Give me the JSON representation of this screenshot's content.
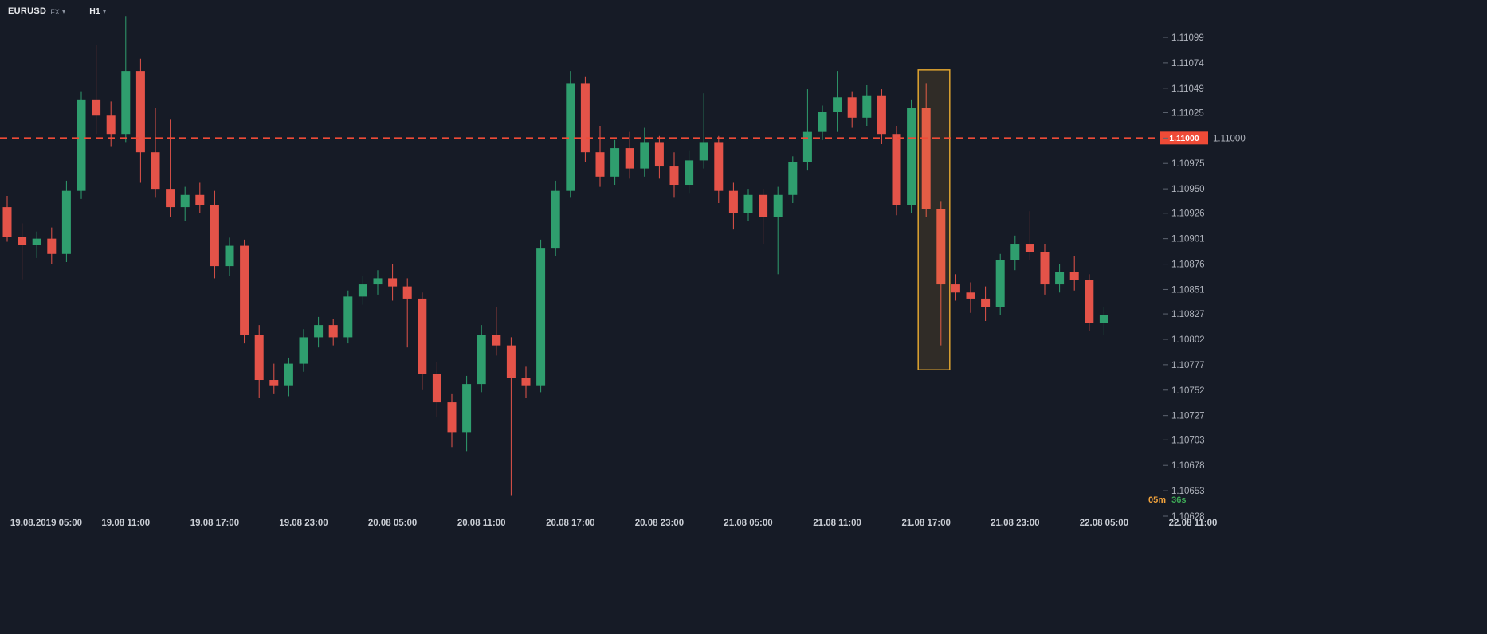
{
  "app": {
    "symbol": "EURUSD",
    "market": "FX",
    "timeframe": "H1",
    "countdown": {
      "minutes": "05m",
      "seconds": "36s"
    }
  },
  "icons": {
    "chevron_down": "▾"
  },
  "colors": {
    "background": "#161b26",
    "up": "#2f9e6e",
    "down": "#e45349",
    "price_line": "#ef4b37",
    "price_tag_text": "#ffffff",
    "axis_text": "#b0b4bd",
    "time_text": "#c9cdd4",
    "tick": "#5f6672",
    "highlight_stroke": "#dfa430",
    "highlight_fill": "rgba(223,164,48,0.13)",
    "countdown_minutes": "#f2a33c",
    "countdown_seconds": "#3eac57"
  },
  "chart_data": {
    "type": "candlestick",
    "symbol": "EURUSD",
    "timeframe": "H1",
    "price_line": {
      "value": 1.11,
      "label": "1.11000"
    },
    "y_axis": {
      "min": 1.10628,
      "max": 1.11099,
      "labels": [
        "1.11099",
        "1.11074",
        "1.11049",
        "1.11025",
        "1.11000",
        "1.10975",
        "1.10950",
        "1.10926",
        "1.10901",
        "1.10876",
        "1.10851",
        "1.10827",
        "1.10802",
        "1.10777",
        "1.10752",
        "1.10727",
        "1.10703",
        "1.10678",
        "1.10653",
        "1.10628"
      ]
    },
    "x_axis": {
      "labels": [
        {
          "text": "19.08.2019 05:00",
          "index": 2
        },
        {
          "text": "19.08 11:00",
          "index": 8
        },
        {
          "text": "19.08 17:00",
          "index": 14
        },
        {
          "text": "19.08 23:00",
          "index": 20
        },
        {
          "text": "20.08 05:00",
          "index": 26
        },
        {
          "text": "20.08 11:00",
          "index": 32
        },
        {
          "text": "20.08 17:00",
          "index": 38
        },
        {
          "text": "20.08 23:00",
          "index": 44
        },
        {
          "text": "21.08 05:00",
          "index": 50
        },
        {
          "text": "21.08 11:00",
          "index": 56
        },
        {
          "text": "21.08 17:00",
          "index": 62
        },
        {
          "text": "21.08 23:00",
          "index": 68
        },
        {
          "text": "22.08 05:00",
          "index": 74
        },
        {
          "text": "22.08 11:00",
          "index": 80
        }
      ]
    },
    "highlight": {
      "from_index": 62,
      "to_index": 63,
      "price_top": 1.11067,
      "price_bottom": 1.10772
    },
    "candles": [
      {
        "t": "19.08 03:00",
        "o": 1.10932,
        "h": 1.10943,
        "l": 1.10898,
        "c": 1.10903
      },
      {
        "t": "19.08 04:00",
        "o": 1.10903,
        "h": 1.10916,
        "l": 1.10861,
        "c": 1.10895
      },
      {
        "t": "19.08 05:00",
        "o": 1.10895,
        "h": 1.10908,
        "l": 1.10882,
        "c": 1.10901
      },
      {
        "t": "19.08 06:00",
        "o": 1.10901,
        "h": 1.10912,
        "l": 1.10876,
        "c": 1.10886
      },
      {
        "t": "19.08 07:00",
        "o": 1.10886,
        "h": 1.10958,
        "l": 1.10878,
        "c": 1.10948
      },
      {
        "t": "19.08 08:00",
        "o": 1.10948,
        "h": 1.11046,
        "l": 1.1094,
        "c": 1.11038
      },
      {
        "t": "19.08 09:00",
        "o": 1.11038,
        "h": 1.11092,
        "l": 1.11004,
        "c": 1.11022
      },
      {
        "t": "19.08 10:00",
        "o": 1.11022,
        "h": 1.11036,
        "l": 1.10992,
        "c": 1.11004
      },
      {
        "t": "19.08 11:00",
        "o": 1.11004,
        "h": 1.1112,
        "l": 1.10996,
        "c": 1.11066
      },
      {
        "t": "19.08 12:00",
        "o": 1.11066,
        "h": 1.11078,
        "l": 1.10956,
        "c": 1.10986
      },
      {
        "t": "19.08 13:00",
        "o": 1.10986,
        "h": 1.1103,
        "l": 1.10942,
        "c": 1.1095
      },
      {
        "t": "19.08 14:00",
        "o": 1.1095,
        "h": 1.11018,
        "l": 1.10922,
        "c": 1.10932
      },
      {
        "t": "19.08 15:00",
        "o": 1.10932,
        "h": 1.10952,
        "l": 1.10918,
        "c": 1.10944
      },
      {
        "t": "19.08 16:00",
        "o": 1.10944,
        "h": 1.10956,
        "l": 1.10926,
        "c": 1.10934
      },
      {
        "t": "19.08 17:00",
        "o": 1.10934,
        "h": 1.10948,
        "l": 1.10862,
        "c": 1.10874
      },
      {
        "t": "19.08 18:00",
        "o": 1.10874,
        "h": 1.10902,
        "l": 1.10864,
        "c": 1.10894
      },
      {
        "t": "19.08 19:00",
        "o": 1.10894,
        "h": 1.109,
        "l": 1.10798,
        "c": 1.10806
      },
      {
        "t": "19.08 20:00",
        "o": 1.10806,
        "h": 1.10816,
        "l": 1.10744,
        "c": 1.10762
      },
      {
        "t": "19.08 21:00",
        "o": 1.10762,
        "h": 1.10778,
        "l": 1.10748,
        "c": 1.10756
      },
      {
        "t": "19.08 22:00",
        "o": 1.10756,
        "h": 1.10784,
        "l": 1.10746,
        "c": 1.10778
      },
      {
        "t": "19.08 23:00",
        "o": 1.10778,
        "h": 1.10812,
        "l": 1.1077,
        "c": 1.10804
      },
      {
        "t": "20.08 00:00",
        "o": 1.10804,
        "h": 1.10824,
        "l": 1.10794,
        "c": 1.10816
      },
      {
        "t": "20.08 01:00",
        "o": 1.10816,
        "h": 1.10822,
        "l": 1.10796,
        "c": 1.10804
      },
      {
        "t": "20.08 02:00",
        "o": 1.10804,
        "h": 1.1085,
        "l": 1.10798,
        "c": 1.10844
      },
      {
        "t": "20.08 03:00",
        "o": 1.10844,
        "h": 1.10864,
        "l": 1.10836,
        "c": 1.10856
      },
      {
        "t": "20.08 04:00",
        "o": 1.10856,
        "h": 1.1087,
        "l": 1.10846,
        "c": 1.10862
      },
      {
        "t": "20.08 05:00",
        "o": 1.10862,
        "h": 1.10876,
        "l": 1.1084,
        "c": 1.10854
      },
      {
        "t": "20.08 06:00",
        "o": 1.10854,
        "h": 1.10862,
        "l": 1.10794,
        "c": 1.10842
      },
      {
        "t": "20.08 07:00",
        "o": 1.10842,
        "h": 1.10848,
        "l": 1.10752,
        "c": 1.10768
      },
      {
        "t": "20.08 08:00",
        "o": 1.10768,
        "h": 1.1078,
        "l": 1.10726,
        "c": 1.1074
      },
      {
        "t": "20.08 09:00",
        "o": 1.1074,
        "h": 1.10748,
        "l": 1.10696,
        "c": 1.1071
      },
      {
        "t": "20.08 10:00",
        "o": 1.1071,
        "h": 1.10766,
        "l": 1.10692,
        "c": 1.10758
      },
      {
        "t": "20.08 11:00",
        "o": 1.10758,
        "h": 1.10816,
        "l": 1.1075,
        "c": 1.10806
      },
      {
        "t": "20.08 12:00",
        "o": 1.10806,
        "h": 1.10834,
        "l": 1.10786,
        "c": 1.10796
      },
      {
        "t": "20.08 13:00",
        "o": 1.10796,
        "h": 1.10804,
        "l": 1.10648,
        "c": 1.10764
      },
      {
        "t": "20.08 14:00",
        "o": 1.10764,
        "h": 1.10775,
        "l": 1.10744,
        "c": 1.10756
      },
      {
        "t": "20.08 15:00",
        "o": 1.10756,
        "h": 1.109,
        "l": 1.1075,
        "c": 1.10892
      },
      {
        "t": "20.08 16:00",
        "o": 1.10892,
        "h": 1.10958,
        "l": 1.10884,
        "c": 1.10948
      },
      {
        "t": "20.08 17:00",
        "o": 1.10948,
        "h": 1.11066,
        "l": 1.10942,
        "c": 1.11054
      },
      {
        "t": "20.08 18:00",
        "o": 1.11054,
        "h": 1.1106,
        "l": 1.10976,
        "c": 1.10986
      },
      {
        "t": "20.08 19:00",
        "o": 1.10986,
        "h": 1.11012,
        "l": 1.10952,
        "c": 1.10962
      },
      {
        "t": "20.08 20:00",
        "o": 1.10962,
        "h": 1.10998,
        "l": 1.10954,
        "c": 1.1099
      },
      {
        "t": "20.08 21:00",
        "o": 1.1099,
        "h": 1.11006,
        "l": 1.1096,
        "c": 1.1097
      },
      {
        "t": "20.08 22:00",
        "o": 1.1097,
        "h": 1.1101,
        "l": 1.10962,
        "c": 1.10996
      },
      {
        "t": "20.08 23:00",
        "o": 1.10996,
        "h": 1.11002,
        "l": 1.1096,
        "c": 1.10972
      },
      {
        "t": "21.08 00:00",
        "o": 1.10972,
        "h": 1.10986,
        "l": 1.10942,
        "c": 1.10954
      },
      {
        "t": "21.08 01:00",
        "o": 1.10954,
        "h": 1.10988,
        "l": 1.10946,
        "c": 1.10978
      },
      {
        "t": "21.08 02:00",
        "o": 1.10978,
        "h": 1.11044,
        "l": 1.1097,
        "c": 1.10996
      },
      {
        "t": "21.08 03:00",
        "o": 1.10996,
        "h": 1.11002,
        "l": 1.10936,
        "c": 1.10948
      },
      {
        "t": "21.08 04:00",
        "o": 1.10948,
        "h": 1.10956,
        "l": 1.1091,
        "c": 1.10926
      },
      {
        "t": "21.08 05:00",
        "o": 1.10926,
        "h": 1.1095,
        "l": 1.10918,
        "c": 1.10944
      },
      {
        "t": "21.08 06:00",
        "o": 1.10944,
        "h": 1.1095,
        "l": 1.10896,
        "c": 1.10922
      },
      {
        "t": "21.08 07:00",
        "o": 1.10922,
        "h": 1.10952,
        "l": 1.10866,
        "c": 1.10944
      },
      {
        "t": "21.08 08:00",
        "o": 1.10944,
        "h": 1.10982,
        "l": 1.10936,
        "c": 1.10976
      },
      {
        "t": "21.08 09:00",
        "o": 1.10976,
        "h": 1.11048,
        "l": 1.10968,
        "c": 1.11006
      },
      {
        "t": "21.08 10:00",
        "o": 1.11006,
        "h": 1.11032,
        "l": 1.10998,
        "c": 1.11026
      },
      {
        "t": "21.08 11:00",
        "o": 1.11026,
        "h": 1.11066,
        "l": 1.11006,
        "c": 1.1104
      },
      {
        "t": "21.08 12:00",
        "o": 1.1104,
        "h": 1.11046,
        "l": 1.1101,
        "c": 1.1102
      },
      {
        "t": "21.08 13:00",
        "o": 1.1102,
        "h": 1.11052,
        "l": 1.11012,
        "c": 1.11042
      },
      {
        "t": "21.08 14:00",
        "o": 1.11042,
        "h": 1.11048,
        "l": 1.10994,
        "c": 1.11004
      },
      {
        "t": "21.08 15:00",
        "o": 1.11004,
        "h": 1.11012,
        "l": 1.10924,
        "c": 1.10934
      },
      {
        "t": "21.08 16:00",
        "o": 1.10934,
        "h": 1.11038,
        "l": 1.10926,
        "c": 1.1103
      },
      {
        "t": "21.08 17:00",
        "o": 1.1103,
        "h": 1.11054,
        "l": 1.10922,
        "c": 1.1093
      },
      {
        "t": "21.08 18:00",
        "o": 1.1093,
        "h": 1.10938,
        "l": 1.10796,
        "c": 1.10856
      },
      {
        "t": "21.08 19:00",
        "o": 1.10856,
        "h": 1.10866,
        "l": 1.1084,
        "c": 1.10848
      },
      {
        "t": "21.08 20:00",
        "o": 1.10848,
        "h": 1.10858,
        "l": 1.10828,
        "c": 1.10842
      },
      {
        "t": "21.08 21:00",
        "o": 1.10842,
        "h": 1.10854,
        "l": 1.1082,
        "c": 1.10834
      },
      {
        "t": "21.08 22:00",
        "o": 1.10834,
        "h": 1.10886,
        "l": 1.10826,
        "c": 1.1088
      },
      {
        "t": "21.08 23:00",
        "o": 1.1088,
        "h": 1.10904,
        "l": 1.1087,
        "c": 1.10896
      },
      {
        "t": "22.08 00:00",
        "o": 1.10896,
        "h": 1.10928,
        "l": 1.1088,
        "c": 1.10888
      },
      {
        "t": "22.08 01:00",
        "o": 1.10888,
        "h": 1.10896,
        "l": 1.10846,
        "c": 1.10856
      },
      {
        "t": "22.08 02:00",
        "o": 1.10856,
        "h": 1.10876,
        "l": 1.10848,
        "c": 1.10868
      },
      {
        "t": "22.08 03:00",
        "o": 1.10868,
        "h": 1.10884,
        "l": 1.1085,
        "c": 1.1086
      },
      {
        "t": "22.08 04:00",
        "o": 1.1086,
        "h": 1.10866,
        "l": 1.1081,
        "c": 1.10818
      },
      {
        "t": "22.08 05:00",
        "o": 1.10818,
        "h": 1.10834,
        "l": 1.10806,
        "c": 1.10826
      }
    ]
  }
}
